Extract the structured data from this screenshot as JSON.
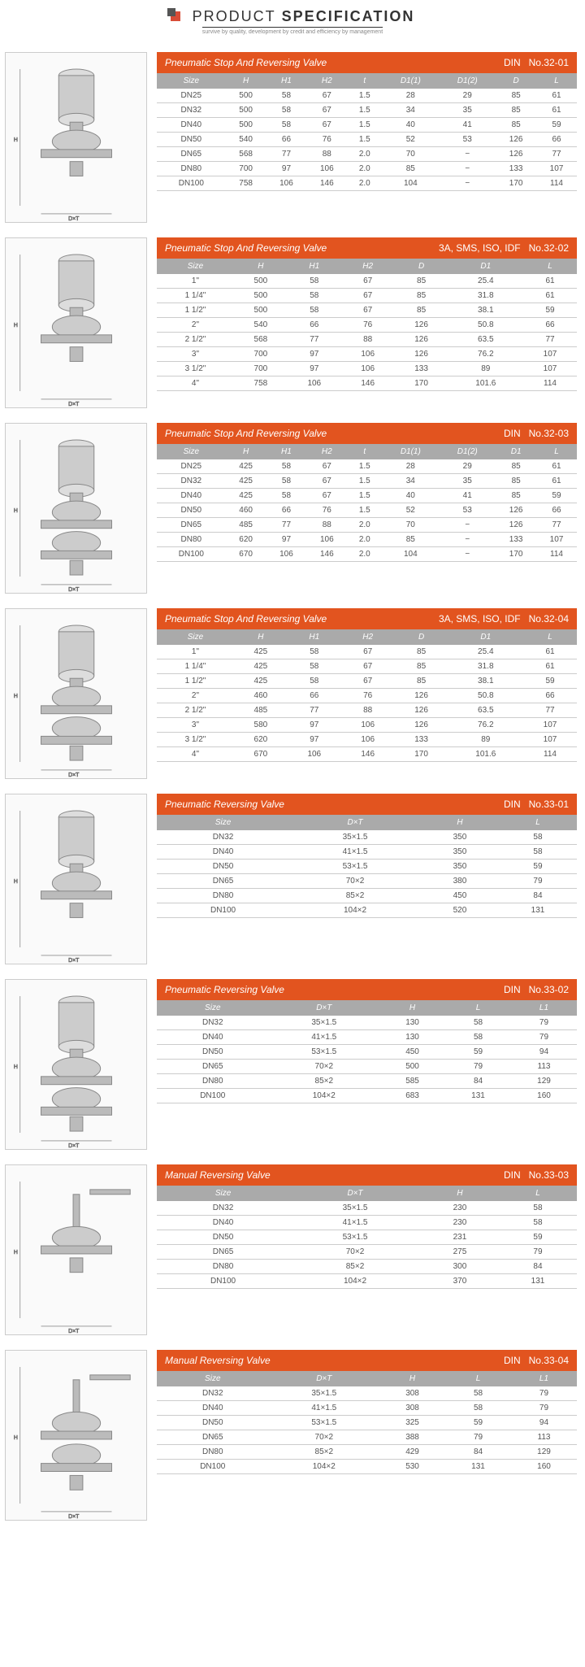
{
  "page": {
    "title_thin": "PRODUCT",
    "title_bold": "SPECIFICATION",
    "subtitle": "survive by quality, development by credit and efficiency by management"
  },
  "tables": [
    {
      "name": "Pneumatic Stop And Reversing Valve",
      "std": "DIN",
      "no": "No.32-01",
      "headers": [
        "Size",
        "H",
        "H1",
        "H2",
        "t",
        "D1(1)",
        "D1(2)",
        "D",
        "L"
      ],
      "rows": [
        [
          "DN25",
          "500",
          "58",
          "67",
          "1.5",
          "28",
          "29",
          "85",
          "61"
        ],
        [
          "DN32",
          "500",
          "58",
          "67",
          "1.5",
          "34",
          "35",
          "85",
          "61"
        ],
        [
          "DN40",
          "500",
          "58",
          "67",
          "1.5",
          "40",
          "41",
          "85",
          "59"
        ],
        [
          "DN50",
          "540",
          "66",
          "76",
          "1.5",
          "52",
          "53",
          "126",
          "66"
        ],
        [
          "DN65",
          "568",
          "77",
          "88",
          "2.0",
          "70",
          "−",
          "126",
          "77"
        ],
        [
          "DN80",
          "700",
          "97",
          "106",
          "2.0",
          "85",
          "−",
          "133",
          "107"
        ],
        [
          "DN100",
          "758",
          "106",
          "146",
          "2.0",
          "104",
          "−",
          "170",
          "114"
        ]
      ]
    },
    {
      "name": "Pneumatic Stop And Reversing Valve",
      "std": "3A, SMS, ISO, IDF",
      "no": "No.32-02",
      "headers": [
        "Size",
        "H",
        "H1",
        "H2",
        "D",
        "D1",
        "L"
      ],
      "rows": [
        [
          "1\"",
          "500",
          "58",
          "67",
          "85",
          "25.4",
          "61"
        ],
        [
          "1 1/4\"",
          "500",
          "58",
          "67",
          "85",
          "31.8",
          "61"
        ],
        [
          "1 1/2\"",
          "500",
          "58",
          "67",
          "85",
          "38.1",
          "59"
        ],
        [
          "2\"",
          "540",
          "66",
          "76",
          "126",
          "50.8",
          "66"
        ],
        [
          "2 1/2\"",
          "568",
          "77",
          "88",
          "126",
          "63.5",
          "77"
        ],
        [
          "3\"",
          "700",
          "97",
          "106",
          "126",
          "76.2",
          "107"
        ],
        [
          "3 1/2\"",
          "700",
          "97",
          "106",
          "133",
          "89",
          "107"
        ],
        [
          "4\"",
          "758",
          "106",
          "146",
          "170",
          "101.6",
          "114"
        ]
      ]
    },
    {
      "name": "Pneumatic Stop And Reversing Valve",
      "std": "DIN",
      "no": "No.32-03",
      "headers": [
        "Size",
        "H",
        "H1",
        "H2",
        "t",
        "D1(1)",
        "D1(2)",
        "D1",
        "L"
      ],
      "rows": [
        [
          "DN25",
          "425",
          "58",
          "67",
          "1.5",
          "28",
          "29",
          "85",
          "61"
        ],
        [
          "DN32",
          "425",
          "58",
          "67",
          "1.5",
          "34",
          "35",
          "85",
          "61"
        ],
        [
          "DN40",
          "425",
          "58",
          "67",
          "1.5",
          "40",
          "41",
          "85",
          "59"
        ],
        [
          "DN50",
          "460",
          "66",
          "76",
          "1.5",
          "52",
          "53",
          "126",
          "66"
        ],
        [
          "DN65",
          "485",
          "77",
          "88",
          "2.0",
          "70",
          "−",
          "126",
          "77"
        ],
        [
          "DN80",
          "620",
          "97",
          "106",
          "2.0",
          "85",
          "−",
          "133",
          "107"
        ],
        [
          "DN100",
          "670",
          "106",
          "146",
          "2.0",
          "104",
          "−",
          "170",
          "114"
        ]
      ]
    },
    {
      "name": "Pneumatic Stop And Reversing Valve",
      "std": "3A, SMS, ISO, IDF",
      "no": "No.32-04",
      "headers": [
        "Size",
        "H",
        "H1",
        "H2",
        "D",
        "D1",
        "L"
      ],
      "rows": [
        [
          "1\"",
          "425",
          "58",
          "67",
          "85",
          "25.4",
          "61"
        ],
        [
          "1 1/4\"",
          "425",
          "58",
          "67",
          "85",
          "31.8",
          "61"
        ],
        [
          "1 1/2\"",
          "425",
          "58",
          "67",
          "85",
          "38.1",
          "59"
        ],
        [
          "2\"",
          "460",
          "66",
          "76",
          "126",
          "50.8",
          "66"
        ],
        [
          "2 1/2\"",
          "485",
          "77",
          "88",
          "126",
          "63.5",
          "77"
        ],
        [
          "3\"",
          "580",
          "97",
          "106",
          "126",
          "76.2",
          "107"
        ],
        [
          "3 1/2\"",
          "620",
          "97",
          "106",
          "133",
          "89",
          "107"
        ],
        [
          "4\"",
          "670",
          "106",
          "146",
          "170",
          "101.6",
          "114"
        ]
      ]
    },
    {
      "name": "Pneumatic Reversing Valve",
      "std": "DIN",
      "no": "No.33-01",
      "headers": [
        "Size",
        "D×T",
        "H",
        "L"
      ],
      "rows": [
        [
          "DN32",
          "35×1.5",
          "350",
          "58"
        ],
        [
          "DN40",
          "41×1.5",
          "350",
          "58"
        ],
        [
          "DN50",
          "53×1.5",
          "350",
          "59"
        ],
        [
          "DN65",
          "70×2",
          "380",
          "79"
        ],
        [
          "DN80",
          "85×2",
          "450",
          "84"
        ],
        [
          "DN100",
          "104×2",
          "520",
          "131"
        ]
      ]
    },
    {
      "name": "Pneumatic Reversing Valve",
      "std": "DIN",
      "no": "No.33-02",
      "headers": [
        "Size",
        "D×T",
        "H",
        "L",
        "L1"
      ],
      "rows": [
        [
          "DN32",
          "35×1.5",
          "130",
          "58",
          "79"
        ],
        [
          "DN40",
          "41×1.5",
          "130",
          "58",
          "79"
        ],
        [
          "DN50",
          "53×1.5",
          "450",
          "59",
          "94"
        ],
        [
          "DN65",
          "70×2",
          "500",
          "79",
          "113"
        ],
        [
          "DN80",
          "85×2",
          "585",
          "84",
          "129"
        ],
        [
          "DN100",
          "104×2",
          "683",
          "131",
          "160"
        ]
      ]
    },
    {
      "name": "Manual Reversing Valve",
      "std": "DIN",
      "no": "No.33-03",
      "headers": [
        "Size",
        "D×T",
        "H",
        "L"
      ],
      "rows": [
        [
          "DN32",
          "35×1.5",
          "230",
          "58"
        ],
        [
          "DN40",
          "41×1.5",
          "230",
          "58"
        ],
        [
          "DN50",
          "53×1.5",
          "231",
          "59"
        ],
        [
          "DN65",
          "70×2",
          "275",
          "79"
        ],
        [
          "DN80",
          "85×2",
          "300",
          "84"
        ],
        [
          "DN100",
          "104×2",
          "370",
          "131"
        ]
      ]
    },
    {
      "name": "Manual Reversing Valve",
      "std": "DIN",
      "no": "No.33-04",
      "headers": [
        "Size",
        "D×T",
        "H",
        "L",
        "L1"
      ],
      "rows": [
        [
          "DN32",
          "35×1.5",
          "308",
          "58",
          "79"
        ],
        [
          "DN40",
          "41×1.5",
          "308",
          "58",
          "79"
        ],
        [
          "DN50",
          "53×1.5",
          "325",
          "59",
          "94"
        ],
        [
          "DN65",
          "70×2",
          "388",
          "79",
          "113"
        ],
        [
          "DN80",
          "85×2",
          "429",
          "84",
          "129"
        ],
        [
          "DN100",
          "104×2",
          "530",
          "131",
          "160"
        ]
      ]
    }
  ],
  "style": {
    "header_bg": "#e2541f",
    "header_text": "#ffffff",
    "th_bg": "#aaaaaa",
    "th_text": "#ffffff",
    "td_text": "#555555",
    "row_border": "#cccccc"
  }
}
